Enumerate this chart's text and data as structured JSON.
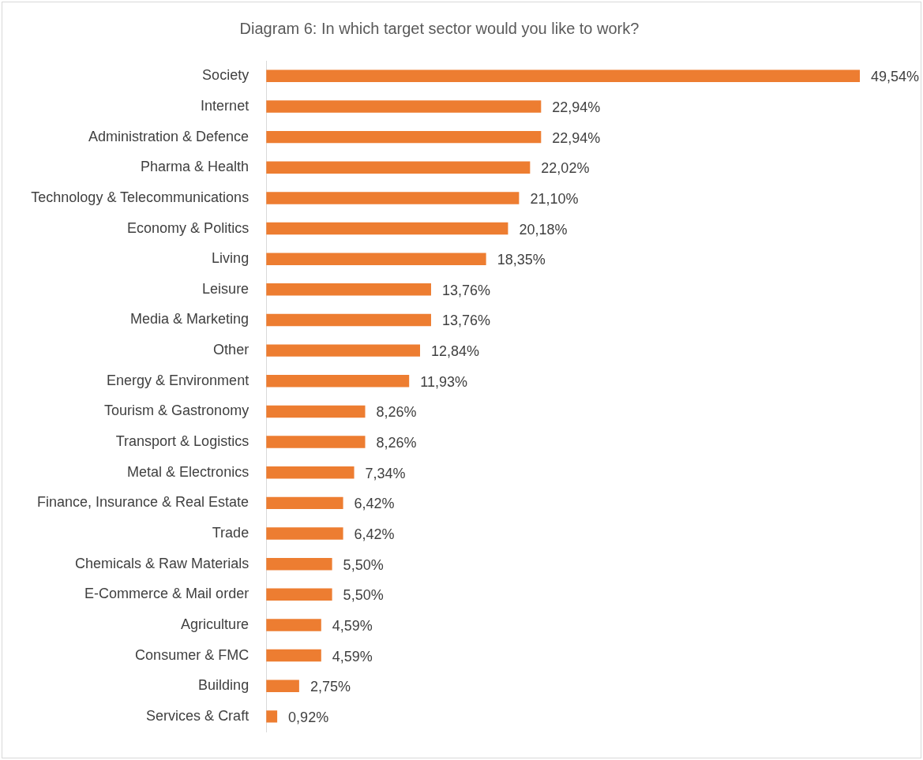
{
  "chart_data": {
    "type": "bar",
    "orientation": "horizontal",
    "title": "Diagram 6: In which target sector would you like to work?",
    "categories": [
      "Society",
      "Internet",
      "Administration & Defence",
      "Pharma & Health",
      "Technology & Telecommunications",
      "Economy & Politics",
      "Living",
      "Leisure",
      "Media & Marketing",
      "Other",
      "Energy & Environment",
      "Tourism & Gastronomy",
      "Transport & Logistics",
      "Metal & Electronics",
      "Finance, Insurance & Real Estate",
      "Trade",
      "Chemicals & Raw Materials",
      "E-Commerce & Mail order",
      "Agriculture",
      "Consumer & FMC",
      "Building",
      "Services & Craft"
    ],
    "values": [
      49.54,
      22.94,
      22.94,
      22.02,
      21.1,
      20.18,
      18.35,
      13.76,
      13.76,
      12.84,
      11.93,
      8.26,
      8.26,
      7.34,
      6.42,
      6.42,
      5.5,
      5.5,
      4.59,
      4.59,
      2.75,
      0.92
    ],
    "value_labels": [
      "49,54%",
      "22,94%",
      "22,94%",
      "22,02%",
      "21,10%",
      "20,18%",
      "18,35%",
      "13,76%",
      "13,76%",
      "12,84%",
      "11,93%",
      "8,26%",
      "8,26%",
      "7,34%",
      "6,42%",
      "6,42%",
      "5,50%",
      "5,50%",
      "4,59%",
      "4,59%",
      "2,75%",
      "0,92%"
    ],
    "color": "#ed7d31",
    "grid": false,
    "legend": false
  }
}
